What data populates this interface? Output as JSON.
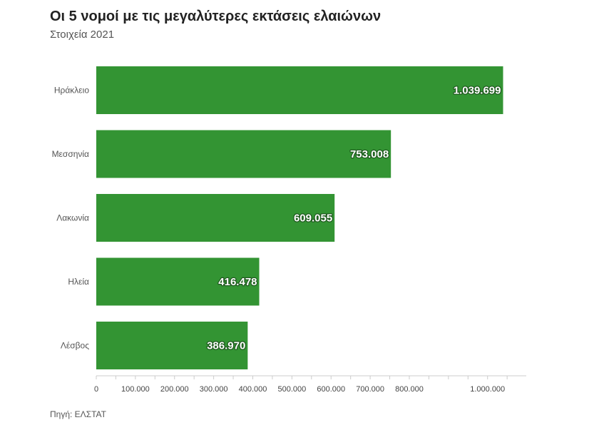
{
  "header": {
    "title": "Οι 5 νομοί με τις μεγαλύτερες εκτάσεις ελαιώνων",
    "subtitle": "Στοιχεία 2021"
  },
  "footer": {
    "source": "Πηγή: ΕΛΣΤΑΤ"
  },
  "colors": {
    "bar": "#339433",
    "axis": "#cccccc"
  },
  "chart_data": {
    "type": "bar",
    "orientation": "horizontal",
    "title": "Οι 5 νομοί με τις μεγαλύτερες εκτάσεις ελαιώνων",
    "subtitle": "Στοιχεία 2021",
    "categories": [
      "Ηράκλειο",
      "Μεσσηνία",
      "Λακωνία",
      "Ηλεία",
      "Λέσβος"
    ],
    "values": [
      1039699,
      753008,
      609055,
      416478,
      386970
    ],
    "value_labels": [
      "1.039.699",
      "753.008",
      "609.055",
      "416.478",
      "386.970"
    ],
    "x_ticks": [
      {
        "value": 0,
        "label": "0"
      },
      {
        "value": 100000,
        "label": "100.000"
      },
      {
        "value": 200000,
        "label": "200.000"
      },
      {
        "value": 300000,
        "label": "300.000"
      },
      {
        "value": 400000,
        "label": "400.000"
      },
      {
        "value": 500000,
        "label": "500.000"
      },
      {
        "value": 600000,
        "label": "600.000"
      },
      {
        "value": 700000,
        "label": "700.000"
      },
      {
        "value": 800000,
        "label": "800.000"
      },
      {
        "value": 1000000,
        "label": "1.000.000"
      }
    ],
    "xlim": [
      0,
      1100000
    ],
    "xlabel": "",
    "ylabel": "",
    "grid": false,
    "legend": "none"
  }
}
